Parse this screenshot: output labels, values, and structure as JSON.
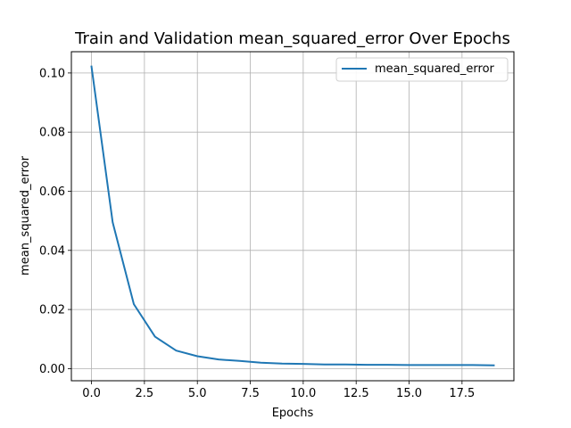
{
  "chart_data": {
    "type": "line",
    "title": "Train and Validation mean_squared_error Over Epochs",
    "xlabel": "Epochs",
    "ylabel": "mean_squared_error",
    "xlim": [
      -0.95,
      19.95
    ],
    "ylim": [
      -0.0041,
      0.1072
    ],
    "xticks": [
      0,
      2.5,
      5,
      7.5,
      10,
      12.5,
      15,
      17.5
    ],
    "xtick_labels": [
      "0.0",
      "2.5",
      "5.0",
      "7.5",
      "10.0",
      "12.5",
      "15.0",
      "17.5"
    ],
    "yticks": [
      0,
      0.02,
      0.04,
      0.06,
      0.08,
      0.1
    ],
    "ytick_labels": [
      "0.00",
      "0.02",
      "0.04",
      "0.06",
      "0.08",
      "0.10"
    ],
    "grid": true,
    "legend_position": "upper right",
    "series": [
      {
        "name": "mean_squared_error",
        "color": "#1f77b4",
        "x": [
          0,
          1,
          2,
          3,
          4,
          5,
          6,
          7,
          8,
          9,
          10,
          11,
          12,
          13,
          14,
          15,
          16,
          17,
          18,
          19
        ],
        "y": [
          0.1022,
          0.0495,
          0.0218,
          0.0108,
          0.0061,
          0.0042,
          0.0031,
          0.0026,
          0.002,
          0.0017,
          0.0016,
          0.0014,
          0.0014,
          0.0013,
          0.0013,
          0.0012,
          0.0012,
          0.0012,
          0.0012,
          0.0011
        ]
      }
    ]
  }
}
